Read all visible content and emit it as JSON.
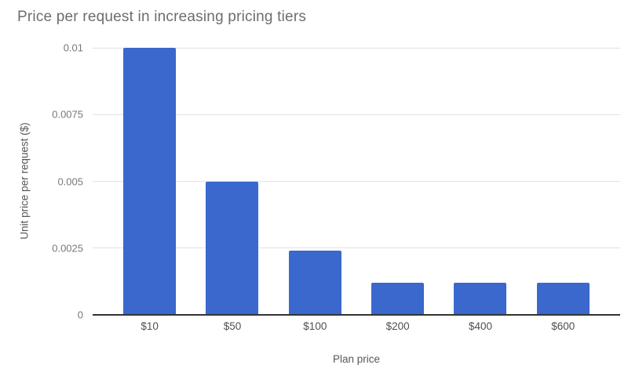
{
  "colors": {
    "background": "#ffffff",
    "bar": "#3a68cc",
    "gridline": "#e2e2e2",
    "axis_line": "#333333",
    "title_text": "#6d6d6d",
    "tick_text": "#787878",
    "category_text": "#4f4f4f",
    "axis_title_text": "#585858"
  },
  "chart_data": {
    "type": "bar",
    "title": "Price per request in increasing pricing tiers",
    "xlabel": "Plan price",
    "ylabel": "Unit price per request ($)",
    "categories": [
      "$10",
      "$50",
      "$100",
      "$200",
      "$400",
      "$600"
    ],
    "values": [
      0.01,
      0.005,
      0.0024,
      0.0012,
      0.0012,
      0.0012
    ],
    "ylim": [
      0,
      0.01
    ],
    "yticks": [
      0,
      0.0025,
      0.005,
      0.0075,
      0.01
    ],
    "ytick_labels": [
      "0",
      "0.0025",
      "0.005",
      "0.0075",
      "0.01"
    ],
    "grid": true,
    "legend": "none",
    "background": "white"
  }
}
